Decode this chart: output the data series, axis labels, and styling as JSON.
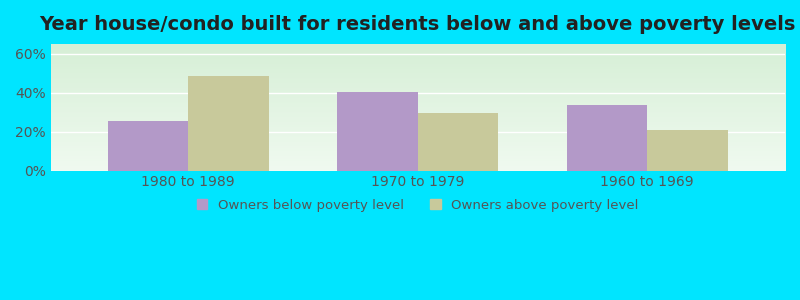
{
  "title": "Year house/condo built for residents below and above poverty levels",
  "categories": [
    "1980 to 1989",
    "1970 to 1979",
    "1960 to 1969"
  ],
  "below_poverty": [
    25.5,
    40.5,
    33.5
  ],
  "above_poverty": [
    48.5,
    29.5,
    21.0
  ],
  "below_color": "#b399c8",
  "above_color": "#c8c99b",
  "ylim": [
    0,
    65
  ],
  "yticks": [
    0,
    20,
    40,
    60
  ],
  "ytick_labels": [
    "0%",
    "20%",
    "40%",
    "60%"
  ],
  "background_top": "#d6efd6",
  "background_bottom": "#f0faf0",
  "outer_color": "#00e5ff",
  "bar_width": 0.35,
  "legend_below_label": "Owners below poverty level",
  "legend_above_label": "Owners above poverty level",
  "title_fontsize": 14,
  "tick_fontsize": 10
}
